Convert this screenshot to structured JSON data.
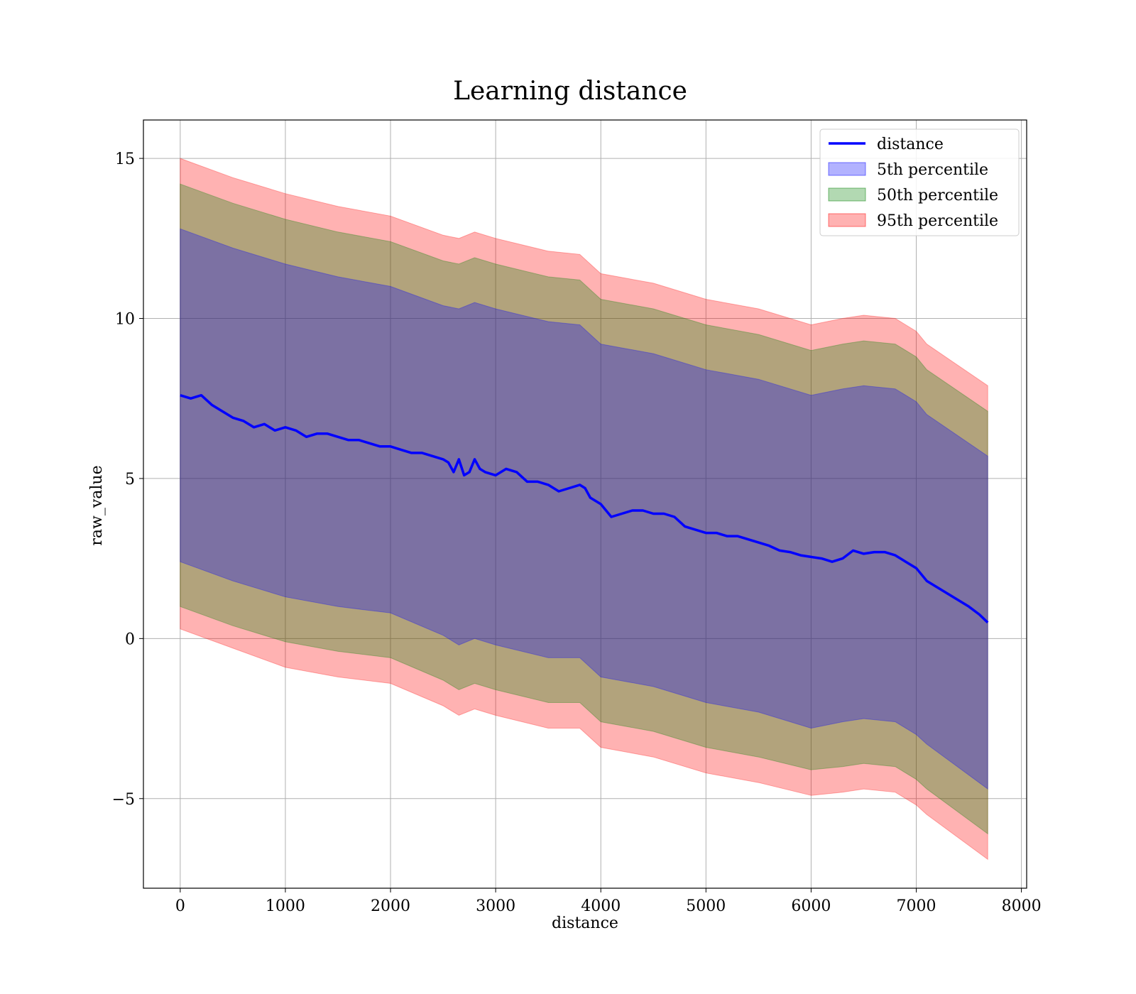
{
  "chart_data": {
    "type": "line",
    "title": "Learning distance",
    "xlabel": "distance",
    "ylabel": "raw_value",
    "xlim": [
      -350,
      8050
    ],
    "ylim": [
      -7.8,
      16.2
    ],
    "x_ticks": [
      0,
      1000,
      2000,
      3000,
      4000,
      5000,
      6000,
      7000,
      8000
    ],
    "x_tick_labels": [
      "0",
      "1000",
      "2000",
      "3000",
      "4000",
      "5000",
      "6000",
      "7000",
      "8000"
    ],
    "y_ticks": [
      -5,
      0,
      5,
      10,
      15
    ],
    "y_tick_labels": [
      "−5",
      "0",
      "5",
      "10",
      "15"
    ],
    "grid": true,
    "legend_position": "top-right",
    "series": [
      {
        "name": "distance",
        "kind": "line",
        "color": "#0000ff",
        "x": [
          0,
          100,
          200,
          300,
          400,
          500,
          600,
          700,
          800,
          900,
          1000,
          1100,
          1200,
          1300,
          1400,
          1500,
          1600,
          1700,
          1800,
          1900,
          2000,
          2100,
          2200,
          2300,
          2400,
          2500,
          2550,
          2600,
          2650,
          2700,
          2750,
          2800,
          2850,
          2900,
          3000,
          3100,
          3200,
          3300,
          3400,
          3500,
          3600,
          3700,
          3800,
          3850,
          3900,
          4000,
          4100,
          4200,
          4300,
          4400,
          4500,
          4600,
          4700,
          4800,
          4900,
          5000,
          5100,
          5200,
          5300,
          5400,
          5500,
          5600,
          5700,
          5800,
          5900,
          6000,
          6100,
          6200,
          6300,
          6400,
          6500,
          6600,
          6700,
          6800,
          6900,
          7000,
          7100,
          7200,
          7300,
          7400,
          7500,
          7600,
          7680
        ],
        "y": [
          7.6,
          7.5,
          7.6,
          7.3,
          7.1,
          6.9,
          6.8,
          6.6,
          6.7,
          6.5,
          6.6,
          6.5,
          6.3,
          6.4,
          6.4,
          6.3,
          6.2,
          6.2,
          6.1,
          6.0,
          6.0,
          5.9,
          5.8,
          5.8,
          5.7,
          5.6,
          5.5,
          5.2,
          5.6,
          5.1,
          5.2,
          5.6,
          5.3,
          5.2,
          5.1,
          5.3,
          5.2,
          4.9,
          4.9,
          4.8,
          4.6,
          4.7,
          4.8,
          4.7,
          4.4,
          4.2,
          3.8,
          3.9,
          4.0,
          4.0,
          3.9,
          3.9,
          3.8,
          3.5,
          3.4,
          3.3,
          3.3,
          3.2,
          3.2,
          3.1,
          3.0,
          2.9,
          2.75,
          2.7,
          2.6,
          2.55,
          2.5,
          2.4,
          2.5,
          2.75,
          2.65,
          2.7,
          2.7,
          2.6,
          2.4,
          2.2,
          1.8,
          1.6,
          1.4,
          1.2,
          1.0,
          0.75,
          0.5
        ]
      },
      {
        "name": "5th percentile",
        "kind": "band",
        "color": "#0000ff",
        "opacity": 0.3,
        "x": [
          0,
          500,
          1000,
          1500,
          2000,
          2500,
          2650,
          2800,
          3000,
          3500,
          3800,
          4000,
          4500,
          5000,
          5500,
          6000,
          6300,
          6500,
          6800,
          7000,
          7100,
          7680
        ],
        "lower": [
          2.4,
          1.8,
          1.3,
          1.0,
          0.8,
          0.1,
          -0.2,
          0.0,
          -0.2,
          -0.6,
          -0.6,
          -1.2,
          -1.5,
          -2.0,
          -2.3,
          -2.8,
          -2.6,
          -2.5,
          -2.6,
          -3.0,
          -3.3,
          -4.7
        ],
        "upper": [
          12.8,
          12.2,
          11.7,
          11.3,
          11.0,
          10.4,
          10.3,
          10.5,
          10.3,
          9.9,
          9.8,
          9.2,
          8.9,
          8.4,
          8.1,
          7.6,
          7.8,
          7.9,
          7.8,
          7.4,
          7.0,
          5.7
        ]
      },
      {
        "name": "50th percentile",
        "kind": "band",
        "color": "#008000",
        "opacity": 0.3,
        "x": [
          0,
          500,
          1000,
          1500,
          2000,
          2500,
          2650,
          2800,
          3000,
          3500,
          3800,
          4000,
          4500,
          5000,
          5500,
          6000,
          6300,
          6500,
          6800,
          7000,
          7100,
          7680
        ],
        "lower": [
          1.0,
          0.4,
          -0.1,
          -0.4,
          -0.6,
          -1.3,
          -1.6,
          -1.4,
          -1.6,
          -2.0,
          -2.0,
          -2.6,
          -2.9,
          -3.4,
          -3.7,
          -4.1,
          -4.0,
          -3.9,
          -4.0,
          -4.4,
          -4.7,
          -6.1
        ],
        "upper": [
          14.2,
          13.6,
          13.1,
          12.7,
          12.4,
          11.8,
          11.7,
          11.9,
          11.7,
          11.3,
          11.2,
          10.6,
          10.3,
          9.8,
          9.5,
          9.0,
          9.2,
          9.3,
          9.2,
          8.8,
          8.4,
          7.1
        ]
      },
      {
        "name": "95th percentile",
        "kind": "band",
        "color": "#ff0000",
        "opacity": 0.3,
        "x": [
          0,
          500,
          1000,
          1500,
          2000,
          2500,
          2650,
          2800,
          3000,
          3500,
          3800,
          4000,
          4500,
          5000,
          5500,
          6000,
          6300,
          6500,
          6800,
          7000,
          7100,
          7680
        ],
        "lower": [
          0.3,
          -0.3,
          -0.9,
          -1.2,
          -1.4,
          -2.1,
          -2.4,
          -2.2,
          -2.4,
          -2.8,
          -2.8,
          -3.4,
          -3.7,
          -4.2,
          -4.5,
          -4.9,
          -4.8,
          -4.7,
          -4.8,
          -5.2,
          -5.5,
          -6.9
        ],
        "upper": [
          15.0,
          14.4,
          13.9,
          13.5,
          13.2,
          12.6,
          12.5,
          12.7,
          12.5,
          12.1,
          12.0,
          11.4,
          11.1,
          10.6,
          10.3,
          9.8,
          10.0,
          10.1,
          10.0,
          9.6,
          9.2,
          7.9
        ]
      }
    ]
  }
}
